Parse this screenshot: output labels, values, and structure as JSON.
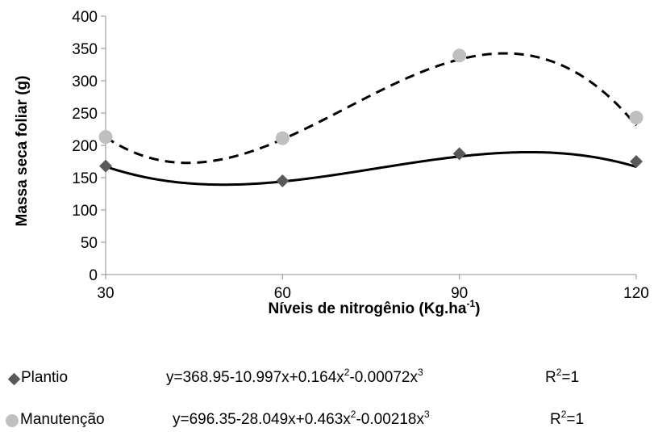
{
  "chart_data": {
    "type": "scatter",
    "xlabel": "Níveis de nitrogênio (Kg.ha",
    "xlabel_sup": "-1",
    "xlabel_end": ")",
    "ylabel": "Massa seca foliar (g)",
    "x_ticks": [
      "30",
      "60",
      "90",
      "120"
    ],
    "y_ticks": [
      "0",
      "50",
      "100",
      "150",
      "200",
      "250",
      "300",
      "350",
      "400"
    ],
    "xlim": [
      30,
      120
    ],
    "ylim": [
      0,
      400
    ],
    "grid": false,
    "legend_position": "bottom",
    "series": [
      {
        "name": "Plantio",
        "marker": "diamond",
        "color": "#595959",
        "line_color": "#000000",
        "line_style": "solid",
        "x": [
          30,
          60,
          90,
          120
        ],
        "y": [
          168,
          145,
          187,
          175
        ],
        "trend": [
          368.95,
          -10.997,
          0.164,
          -0.00072
        ],
        "equation": {
          "y": "y=368.95-10.997x+0.164x",
          "a": "2",
          "b": "-0.00072x",
          "c": "3"
        },
        "r2": {
          "text": "R",
          "sup": "2",
          "val": "=1"
        }
      },
      {
        "name": "Manutenção",
        "marker": "circle",
        "color": "#bfbfbf",
        "line_color": "#000000",
        "line_style": "dashed",
        "x": [
          30,
          60,
          90,
          120
        ],
        "y": [
          213,
          211,
          339,
          243
        ],
        "trend": [
          696.35,
          -28.049,
          0.463,
          -0.00218
        ],
        "equation": {
          "y": "y=696.35-28.049x+0.463x",
          "a": "2",
          "b": "-0.00218x",
          "c": "3"
        },
        "r2": {
          "text": "R",
          "sup": "2",
          "val": "=1"
        }
      }
    ]
  }
}
